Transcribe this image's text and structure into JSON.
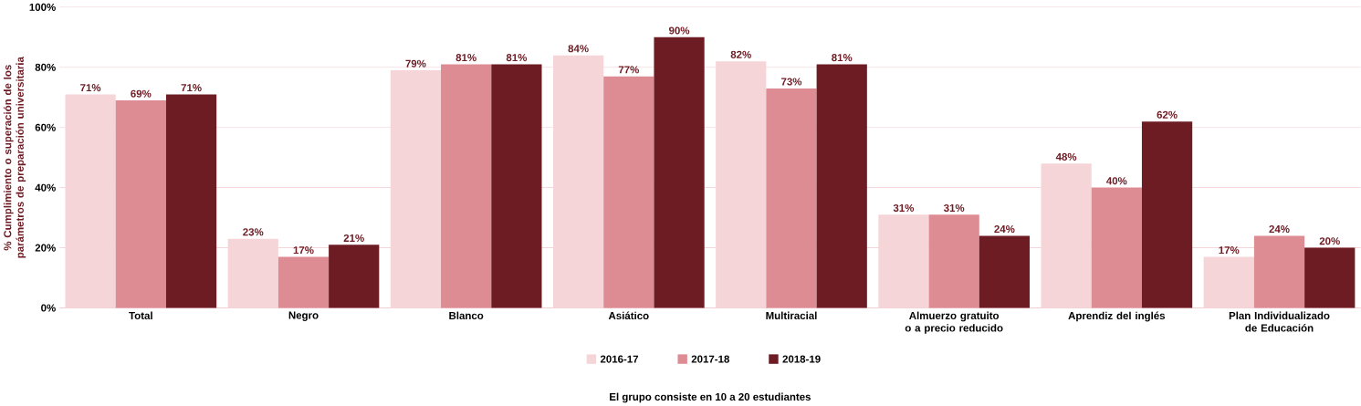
{
  "chart_data": {
    "type": "bar",
    "ylabel": "% Cumplimiento o superación de los parámetros de preparación universitaria",
    "categories": [
      "Total",
      "Negro",
      "Blanco",
      "Asiático",
      "Multiracial",
      "Almuerzo gratuito o a precio reducido",
      "Aprendiz del inglés",
      "Plan Individualizado de Educación"
    ],
    "series": [
      {
        "name": "2016-17",
        "color": "#f6d5d8",
        "values": [
          71,
          23,
          79,
          84,
          82,
          31,
          48,
          17
        ],
        "value_labels": [
          "71%",
          "23%",
          "79%",
          "84%",
          "82%",
          "31%",
          "48%",
          "17%"
        ]
      },
      {
        "name": "2017-18",
        "color": "#de8c93",
        "values": [
          69,
          17,
          81,
          77,
          73,
          31,
          40,
          24
        ],
        "value_labels": [
          "69%",
          "17%",
          "81%",
          "77%",
          "73%",
          "31%",
          "40%",
          "24%"
        ]
      },
      {
        "name": "2018-19",
        "color": "#6e1c24",
        "values": [
          71,
          21,
          81,
          90,
          81,
          24,
          62,
          20
        ],
        "value_labels": [
          "71%",
          "21%",
          "81%",
          "90%",
          "81%",
          "24%",
          "62%",
          "20%"
        ]
      }
    ],
    "ylim": [
      0,
      100
    ],
    "yticks": [
      {
        "value": 0,
        "label": "0%"
      },
      {
        "value": 20,
        "label": "20%"
      },
      {
        "value": 40,
        "label": "40%"
      },
      {
        "value": 60,
        "label": "60%"
      },
      {
        "value": 80,
        "label": "80%"
      },
      {
        "value": 100,
        "label": "100%"
      }
    ],
    "grid": "y",
    "legend": "bottom",
    "annotations": [
      "El grupo consiste en 10 a 20 estudiantes"
    ]
  }
}
